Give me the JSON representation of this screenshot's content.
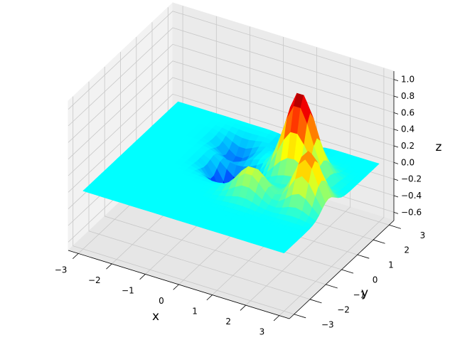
{
  "chart_data": {
    "type": "surface3d",
    "title": "",
    "colormap": "jet",
    "colormap_stops": [
      "#00007f",
      "#0000ff",
      "#007fff",
      "#00ffff",
      "#7fff7f",
      "#ffff00",
      "#ff7f00",
      "#ff0000",
      "#7f0000"
    ],
    "xlabel": "x",
    "ylabel": "y",
    "zlabel": "z",
    "xlim": [
      -3.3,
      3.3
    ],
    "ylim": [
      -3.3,
      3.3
    ],
    "zlim": [
      -0.7,
      1.1
    ],
    "xticks": [
      -3,
      -2,
      -1,
      0,
      1,
      2,
      3
    ],
    "yticks": [
      -3,
      -2,
      -1,
      0,
      1,
      2,
      3
    ],
    "zticks": [
      -0.6,
      -0.4,
      -0.2,
      0.0,
      0.2,
      0.4,
      0.6,
      0.8,
      1.0
    ],
    "xtick_labels": [
      "−3",
      "−2",
      "−1",
      "0",
      "1",
      "2",
      "3"
    ],
    "ytick_labels": [
      "−3",
      "−2",
      "−1",
      "0",
      "1",
      "2",
      "3"
    ],
    "ztick_labels": [
      "−0.6",
      "−0.4",
      "−0.2",
      "0.0",
      "0.2",
      "0.4",
      "0.6",
      "0.8",
      "1.0"
    ],
    "grid": true,
    "color_range": [
      -0.6,
      1.0
    ],
    "surface_features": [
      {
        "kind": "peak",
        "x": 1.5,
        "y": 1.2,
        "z": 1.0,
        "spread_x": 0.6,
        "spread_y": 0.55
      },
      {
        "kind": "peak",
        "x": 2.4,
        "y": -0.2,
        "z": 0.65,
        "spread_x": 0.5,
        "spread_y": 0.6
      },
      {
        "kind": "peak",
        "x": 0.9,
        "y": -0.6,
        "z": 0.35,
        "spread_x": 0.55,
        "spread_y": 0.5
      },
      {
        "kind": "trough",
        "x": -0.2,
        "y": 0.5,
        "z": -0.65,
        "spread_x": 0.55,
        "spread_y": 0.5
      },
      {
        "kind": "trough",
        "x": -0.7,
        "y": 1.8,
        "z": -0.25,
        "spread_x": 0.5,
        "spread_y": 0.5
      },
      {
        "kind": "trough",
        "x": 0.7,
        "y": 2.6,
        "z": -0.15,
        "spread_x": 0.5,
        "spread_y": 0.45
      }
    ]
  }
}
